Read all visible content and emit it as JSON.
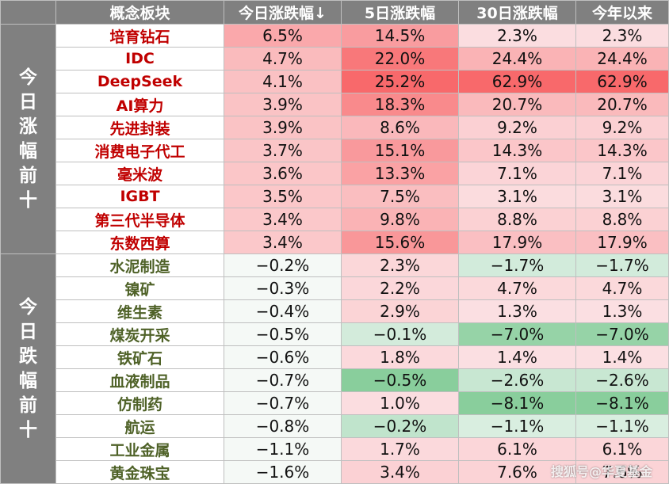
{
  "header": {
    "name_label": "概念板块",
    "today_label": "今日涨跌幅↓",
    "five_day_label": "5日涨跌幅",
    "thirty_day_label": "30日涨跌幅",
    "ytd_label": "今年以来"
  },
  "groups": [
    {
      "label": "今日涨幅前十",
      "direction": "up",
      "rows": [
        {
          "name": "培育钻石",
          "today": "6.5%",
          "five_day": "14.5%",
          "thirty_day": "2.3%",
          "ytd": "2.3%"
        },
        {
          "name": "IDC",
          "today": "4.7%",
          "five_day": "22.0%",
          "thirty_day": "24.4%",
          "ytd": "24.4%"
        },
        {
          "name": "DeepSeek",
          "today": "4.1%",
          "five_day": "25.2%",
          "thirty_day": "62.9%",
          "ytd": "62.9%"
        },
        {
          "name": "AI算力",
          "today": "3.9%",
          "five_day": "18.3%",
          "thirty_day": "20.7%",
          "ytd": "20.7%"
        },
        {
          "name": "先进封装",
          "today": "3.9%",
          "five_day": "8.6%",
          "thirty_day": "9.2%",
          "ytd": "9.2%"
        },
        {
          "name": "消费电子代工",
          "today": "3.7%",
          "five_day": "15.1%",
          "thirty_day": "14.3%",
          "ytd": "14.3%"
        },
        {
          "name": "毫米波",
          "today": "3.6%",
          "five_day": "13.3%",
          "thirty_day": "7.1%",
          "ytd": "7.1%"
        },
        {
          "name": "IGBT",
          "today": "3.5%",
          "five_day": "7.5%",
          "thirty_day": "3.1%",
          "ytd": "3.1%"
        },
        {
          "name": "第三代半导体",
          "today": "3.4%",
          "five_day": "9.8%",
          "thirty_day": "8.8%",
          "ytd": "8.8%"
        },
        {
          "name": "东数西算",
          "today": "3.4%",
          "five_day": "15.6%",
          "thirty_day": "17.9%",
          "ytd": "17.9%"
        }
      ]
    },
    {
      "label": "今日跌幅前十",
      "direction": "down",
      "rows": [
        {
          "name": "水泥制造",
          "today": "−0.2%",
          "five_day": "2.3%",
          "thirty_day": "−1.7%",
          "ytd": "−1.7%"
        },
        {
          "name": "镍矿",
          "today": "−0.3%",
          "five_day": "2.2%",
          "thirty_day": "4.7%",
          "ytd": "4.7%"
        },
        {
          "name": "维生素",
          "today": "−0.4%",
          "five_day": "2.9%",
          "thirty_day": "1.3%",
          "ytd": "1.3%"
        },
        {
          "name": "煤炭开采",
          "today": "−0.5%",
          "five_day": "−0.1%",
          "thirty_day": "−7.0%",
          "ytd": "−7.0%"
        },
        {
          "name": "铁矿石",
          "today": "−0.6%",
          "five_day": "1.8%",
          "thirty_day": "1.4%",
          "ytd": "1.4%"
        },
        {
          "name": "血液制品",
          "today": "−0.7%",
          "five_day": "−0.5%",
          "thirty_day": "−2.6%",
          "ytd": "−2.6%"
        },
        {
          "name": "仿制药",
          "today": "−0.7%",
          "five_day": "1.0%",
          "thirty_day": "−8.1%",
          "ytd": "−8.1%"
        },
        {
          "name": "航运",
          "today": "−0.8%",
          "five_day": "−0.2%",
          "thirty_day": "−1.1%",
          "ytd": "−1.1%"
        },
        {
          "name": "工业金属",
          "today": "−1.1%",
          "five_day": "1.7%",
          "thirty_day": "6.1%",
          "ytd": "6.1%"
        },
        {
          "name": "黄金珠宝",
          "today": "−1.6%",
          "five_day": "3.4%",
          "thirty_day": "7.6%",
          "ytd": "7.6%"
        }
      ]
    }
  ],
  "colors": {
    "header_bg": "#808080",
    "up_text": "#c00000",
    "down_text": "#4f6228",
    "positive_max": "#f8696b",
    "negative_max": "#63be7b",
    "neutral": "#fcfcff"
  },
  "watermark": "搜狐号@华夏基金"
}
